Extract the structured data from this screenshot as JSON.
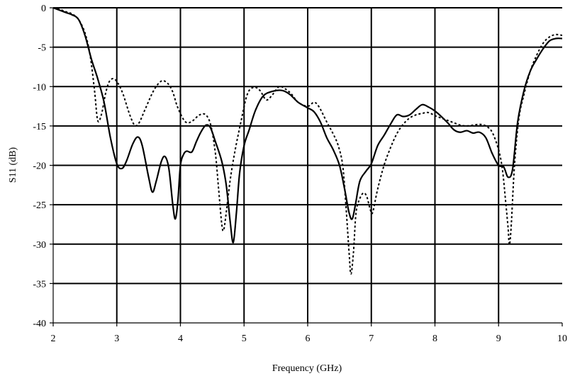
{
  "chart_data": {
    "type": "line",
    "title": "",
    "xlabel": "Frequency (GHz)",
    "ylabel": "S11 (dB)",
    "xlim": [
      2,
      10
    ],
    "ylim": [
      -40,
      0
    ],
    "x_ticks": [
      "2",
      "3",
      "4",
      "5",
      "6",
      "7",
      "8",
      "9",
      "10"
    ],
    "y_ticks": [
      "0",
      "-5",
      "-10",
      "-15",
      "-20",
      "-25",
      "-30",
      "-35",
      "-40"
    ],
    "grid": "major gridlines on",
    "legend": "none",
    "series": [
      {
        "style": "solid",
        "color": "#000000",
        "points": [
          [
            2.0,
            0.0
          ],
          [
            2.1,
            -0.3
          ],
          [
            2.2,
            -0.6
          ],
          [
            2.3,
            -0.9
          ],
          [
            2.4,
            -1.5
          ],
          [
            2.5,
            -3.5
          ],
          [
            2.6,
            -6.5
          ],
          [
            2.7,
            -9.0
          ],
          [
            2.8,
            -12.0
          ],
          [
            2.9,
            -16.5
          ],
          [
            3.0,
            -19.8
          ],
          [
            3.08,
            -20.4
          ],
          [
            3.15,
            -19.5
          ],
          [
            3.25,
            -17.3
          ],
          [
            3.33,
            -16.4
          ],
          [
            3.4,
            -17.5
          ],
          [
            3.5,
            -21.5
          ],
          [
            3.56,
            -23.4
          ],
          [
            3.62,
            -22.0
          ],
          [
            3.7,
            -19.5
          ],
          [
            3.76,
            -18.9
          ],
          [
            3.82,
            -20.5
          ],
          [
            3.88,
            -25.0
          ],
          [
            3.92,
            -26.8
          ],
          [
            3.96,
            -24.5
          ],
          [
            4.0,
            -20.0
          ],
          [
            4.05,
            -18.6
          ],
          [
            4.1,
            -18.2
          ],
          [
            4.18,
            -18.3
          ],
          [
            4.25,
            -17.0
          ],
          [
            4.32,
            -15.8
          ],
          [
            4.4,
            -14.9
          ],
          [
            4.47,
            -15.2
          ],
          [
            4.55,
            -17.0
          ],
          [
            4.65,
            -19.5
          ],
          [
            4.72,
            -22.5
          ],
          [
            4.78,
            -27.0
          ],
          [
            4.83,
            -29.8
          ],
          [
            4.88,
            -26.0
          ],
          [
            4.93,
            -21.0
          ],
          [
            5.0,
            -17.5
          ],
          [
            5.08,
            -15.5
          ],
          [
            5.18,
            -13.0
          ],
          [
            5.3,
            -11.2
          ],
          [
            5.45,
            -10.6
          ],
          [
            5.6,
            -10.5
          ],
          [
            5.72,
            -11.0
          ],
          [
            5.85,
            -12.0
          ],
          [
            6.0,
            -12.7
          ],
          [
            6.1,
            -13.2
          ],
          [
            6.2,
            -14.5
          ],
          [
            6.3,
            -16.5
          ],
          [
            6.4,
            -18.0
          ],
          [
            6.5,
            -20.0
          ],
          [
            6.58,
            -23.0
          ],
          [
            6.65,
            -26.0
          ],
          [
            6.7,
            -26.8
          ],
          [
            6.75,
            -25.0
          ],
          [
            6.82,
            -22.0
          ],
          [
            6.92,
            -20.7
          ],
          [
            7.0,
            -19.8
          ],
          [
            7.1,
            -17.5
          ],
          [
            7.2,
            -16.2
          ],
          [
            7.3,
            -14.8
          ],
          [
            7.4,
            -13.6
          ],
          [
            7.5,
            -13.8
          ],
          [
            7.6,
            -13.6
          ],
          [
            7.7,
            -12.9
          ],
          [
            7.8,
            -12.3
          ],
          [
            7.9,
            -12.6
          ],
          [
            8.0,
            -13.1
          ],
          [
            8.1,
            -13.8
          ],
          [
            8.2,
            -14.6
          ],
          [
            8.3,
            -15.5
          ],
          [
            8.4,
            -15.8
          ],
          [
            8.5,
            -15.6
          ],
          [
            8.6,
            -15.9
          ],
          [
            8.7,
            -15.8
          ],
          [
            8.8,
            -16.5
          ],
          [
            8.9,
            -18.5
          ],
          [
            9.0,
            -20.0
          ],
          [
            9.08,
            -20.2
          ],
          [
            9.15,
            -21.5
          ],
          [
            9.22,
            -20.5
          ],
          [
            9.3,
            -14.5
          ],
          [
            9.4,
            -10.5
          ],
          [
            9.5,
            -8.0
          ],
          [
            9.6,
            -6.5
          ],
          [
            9.7,
            -5.2
          ],
          [
            9.8,
            -4.2
          ],
          [
            9.9,
            -3.9
          ],
          [
            10.0,
            -3.9
          ]
        ]
      },
      {
        "style": "dashed",
        "color": "#000000",
        "points": [
          [
            2.0,
            0.0
          ],
          [
            2.1,
            -0.2
          ],
          [
            2.2,
            -0.5
          ],
          [
            2.3,
            -0.8
          ],
          [
            2.4,
            -1.5
          ],
          [
            2.5,
            -3.2
          ],
          [
            2.58,
            -6.0
          ],
          [
            2.65,
            -10.5
          ],
          [
            2.7,
            -14.3
          ],
          [
            2.76,
            -13.5
          ],
          [
            2.82,
            -11.0
          ],
          [
            2.88,
            -9.4
          ],
          [
            2.95,
            -9.0
          ],
          [
            3.02,
            -9.6
          ],
          [
            3.1,
            -11.0
          ],
          [
            3.2,
            -13.5
          ],
          [
            3.28,
            -14.9
          ],
          [
            3.35,
            -14.6
          ],
          [
            3.45,
            -12.8
          ],
          [
            3.58,
            -10.5
          ],
          [
            3.7,
            -9.3
          ],
          [
            3.8,
            -9.6
          ],
          [
            3.88,
            -10.7
          ],
          [
            3.95,
            -12.5
          ],
          [
            4.05,
            -14.2
          ],
          [
            4.12,
            -14.6
          ],
          [
            4.2,
            -14.3
          ],
          [
            4.3,
            -13.6
          ],
          [
            4.4,
            -13.6
          ],
          [
            4.48,
            -15.0
          ],
          [
            4.55,
            -18.5
          ],
          [
            4.6,
            -23.0
          ],
          [
            4.65,
            -27.5
          ],
          [
            4.68,
            -28.2
          ],
          [
            4.72,
            -26.0
          ],
          [
            4.78,
            -22.0
          ],
          [
            4.85,
            -18.5
          ],
          [
            4.95,
            -14.5
          ],
          [
            5.05,
            -11.0
          ],
          [
            5.15,
            -10.1
          ],
          [
            5.25,
            -10.5
          ],
          [
            5.35,
            -11.7
          ],
          [
            5.45,
            -11.0
          ],
          [
            5.55,
            -10.0
          ],
          [
            5.65,
            -10.3
          ],
          [
            5.75,
            -11.0
          ],
          [
            5.85,
            -12.0
          ],
          [
            6.0,
            -12.5
          ],
          [
            6.1,
            -12.0
          ],
          [
            6.18,
            -12.6
          ],
          [
            6.3,
            -14.5
          ],
          [
            6.4,
            -16.0
          ],
          [
            6.48,
            -17.5
          ],
          [
            6.55,
            -20.0
          ],
          [
            6.6,
            -25.0
          ],
          [
            6.65,
            -31.0
          ],
          [
            6.68,
            -33.8
          ],
          [
            6.72,
            -31.0
          ],
          [
            6.76,
            -26.0
          ],
          [
            6.82,
            -24.2
          ],
          [
            6.88,
            -23.5
          ],
          [
            6.93,
            -24.0
          ],
          [
            6.98,
            -25.5
          ],
          [
            7.02,
            -26.0
          ],
          [
            7.1,
            -23.0
          ],
          [
            7.2,
            -20.0
          ],
          [
            7.3,
            -17.8
          ],
          [
            7.4,
            -16.0
          ],
          [
            7.5,
            -14.8
          ],
          [
            7.6,
            -14.0
          ],
          [
            7.7,
            -13.6
          ],
          [
            7.8,
            -13.4
          ],
          [
            7.9,
            -13.3
          ],
          [
            8.0,
            -13.7
          ],
          [
            8.1,
            -14.0
          ],
          [
            8.2,
            -14.3
          ],
          [
            8.3,
            -14.6
          ],
          [
            8.4,
            -14.9
          ],
          [
            8.5,
            -15.0
          ],
          [
            8.6,
            -14.9
          ],
          [
            8.7,
            -14.8
          ],
          [
            8.8,
            -15.0
          ],
          [
            8.9,
            -15.8
          ],
          [
            9.0,
            -18.0
          ],
          [
            9.06,
            -20.5
          ],
          [
            9.11,
            -24.5
          ],
          [
            9.15,
            -28.0
          ],
          [
            9.17,
            -30.1
          ],
          [
            9.2,
            -27.5
          ],
          [
            9.25,
            -20.0
          ],
          [
            9.32,
            -14.0
          ],
          [
            9.4,
            -11.0
          ],
          [
            9.5,
            -8.0
          ],
          [
            9.6,
            -6.0
          ],
          [
            9.7,
            -4.5
          ],
          [
            9.8,
            -3.7
          ],
          [
            9.9,
            -3.4
          ],
          [
            10.0,
            -3.5
          ]
        ]
      }
    ]
  }
}
